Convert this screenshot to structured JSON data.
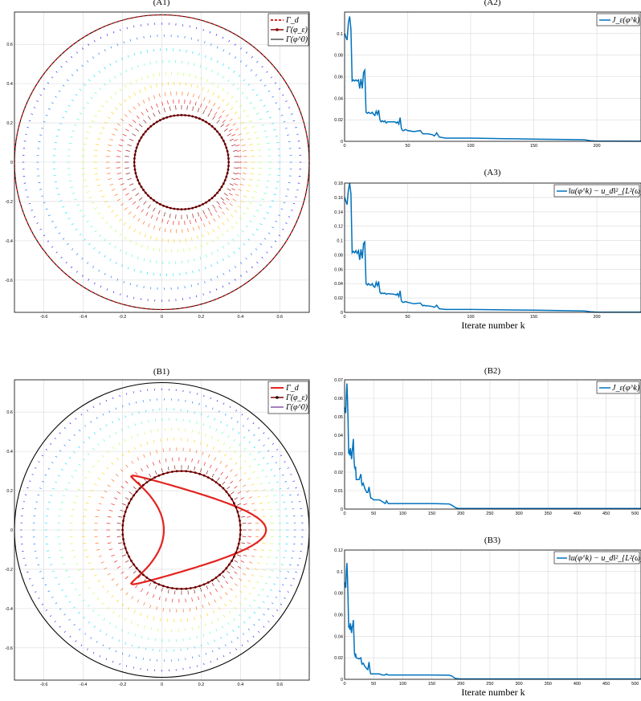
{
  "chart_data": [
    {
      "id": "A1",
      "type": "scatter",
      "title": "(A1)",
      "xlim": [
        -0.75,
        0.75
      ],
      "ylim": [
        -0.75,
        0.75
      ],
      "ticks": [
        -0.6,
        -0.4,
        -0.2,
        0,
        0.2,
        0.4,
        0.6
      ],
      "tick_labels": [
        "-0.6",
        "-0.4",
        "-0.2",
        "0",
        "0.2",
        "0.4",
        "0.6"
      ],
      "grid": true,
      "legend_position": "top-right",
      "legend": [
        "Γ_d",
        "Γ(φ_ε)",
        "Γ(φ^0)"
      ],
      "domain_circle_radius": 0.75,
      "target_shape": "circle",
      "target_radius": 0.75,
      "target_style": "dashed-red",
      "recovered_center": [
        0.1,
        0
      ],
      "recovered_radius": 0.24,
      "quiver_rings": [
        0.29,
        0.32,
        0.36,
        0.41,
        0.46,
        0.52,
        0.58,
        0.65,
        0.71
      ]
    },
    {
      "id": "A2",
      "type": "line",
      "title": "(A2)",
      "xlim": [
        0,
        235
      ],
      "ylim": [
        0,
        0.12
      ],
      "xticks": [
        0,
        50,
        100,
        150,
        200
      ],
      "xtick_labels": [
        "0",
        "50",
        "100",
        "150",
        "200"
      ],
      "yticks": [
        0,
        0.02,
        0.04,
        0.06,
        0.08,
        0.1
      ],
      "ytick_labels": [
        "0",
        "0.02",
        "0.04",
        "0.06",
        "0.08",
        "0.1"
      ],
      "grid": true,
      "legend_position": "top-right",
      "series": [
        {
          "name": "J_ε(φ^k)",
          "color": "#0072bd",
          "x": [
            0,
            2,
            3,
            4,
            5,
            6,
            7,
            8,
            9,
            10,
            11,
            12,
            13,
            14,
            15,
            16,
            17,
            18,
            19,
            20,
            21,
            22,
            23,
            24,
            25,
            26,
            27,
            28,
            29,
            30,
            31,
            32,
            33,
            34,
            35,
            40,
            41,
            42,
            43,
            44,
            45,
            46,
            47,
            48,
            50,
            55,
            60,
            62,
            63,
            64,
            66,
            70,
            71,
            72,
            73,
            75,
            80,
            100,
            150,
            190,
            195,
            200,
            235
          ],
          "y": [
            0.1,
            0.094,
            0.11,
            0.116,
            0.104,
            0.056,
            0.057,
            0.056,
            0.057,
            0.056,
            0.057,
            0.049,
            0.058,
            0.049,
            0.064,
            0.066,
            0.027,
            0.026,
            0.027,
            0.026,
            0.026,
            0.027,
            0.025,
            0.024,
            0.028,
            0.025,
            0.029,
            0.02,
            0.018,
            0.019,
            0.018,
            0.019,
            0.017,
            0.018,
            0.018,
            0.018,
            0.017,
            0.018,
            0.016,
            0.022,
            0.012,
            0.01,
            0.01,
            0.011,
            0.01,
            0.009,
            0.01,
            0.007,
            0.007,
            0.007,
            0.007,
            0.006,
            0.005,
            0.006,
            0.008,
            0.004,
            0.003,
            0.003,
            0.002,
            0.0015,
            0.0005,
            0.0002,
            0.0001
          ]
        }
      ]
    },
    {
      "id": "A3",
      "type": "line",
      "title": "(A3)",
      "xlabel": "Iterate number k",
      "xlim": [
        0,
        235
      ],
      "ylim": [
        0,
        0.18
      ],
      "xticks": [
        0,
        50,
        100,
        150,
        200
      ],
      "xtick_labels": [
        "0",
        "50",
        "100",
        "150",
        "200"
      ],
      "yticks": [
        0,
        0.02,
        0.04,
        0.06,
        0.08,
        0.1,
        0.12,
        0.14,
        0.16,
        0.18
      ],
      "ytick_labels": [
        "0",
        "0.02",
        "0.04",
        "0.06",
        "0.08",
        "0.1",
        "0.12",
        "0.14",
        "0.16",
        "0.18"
      ],
      "grid": true,
      "legend_position": "top-right",
      "series": [
        {
          "name": "‖u(φ^k) − u_d‖²_{L²(ω)}",
          "color": "#0072bd",
          "x": [
            0,
            2,
            3,
            4,
            5,
            6,
            7,
            8,
            9,
            10,
            11,
            12,
            13,
            14,
            15,
            16,
            17,
            18,
            19,
            20,
            21,
            22,
            23,
            24,
            25,
            26,
            27,
            28,
            29,
            30,
            31,
            32,
            33,
            34,
            35,
            40,
            41,
            42,
            43,
            44,
            45,
            46,
            47,
            48,
            50,
            55,
            60,
            62,
            63,
            64,
            66,
            70,
            71,
            72,
            73,
            75,
            80,
            100,
            150,
            190,
            195,
            200,
            235
          ],
          "y": [
            0.16,
            0.15,
            0.17,
            0.18,
            0.165,
            0.083,
            0.085,
            0.083,
            0.086,
            0.082,
            0.086,
            0.073,
            0.088,
            0.075,
            0.096,
            0.098,
            0.04,
            0.038,
            0.04,
            0.038,
            0.038,
            0.04,
            0.036,
            0.035,
            0.042,
            0.037,
            0.043,
            0.028,
            0.026,
            0.027,
            0.026,
            0.027,
            0.025,
            0.026,
            0.026,
            0.025,
            0.024,
            0.026,
            0.022,
            0.03,
            0.016,
            0.014,
            0.014,
            0.015,
            0.014,
            0.012,
            0.013,
            0.009,
            0.01,
            0.009,
            0.009,
            0.008,
            0.007,
            0.008,
            0.01,
            0.005,
            0.004,
            0.004,
            0.003,
            0.002,
            0.0008,
            0.0003,
            0.0002
          ]
        }
      ]
    },
    {
      "id": "B1",
      "type": "scatter",
      "title": "(B1)",
      "xlim": [
        -0.75,
        0.75
      ],
      "ylim": [
        -0.75,
        0.75
      ],
      "ticks": [
        -0.6,
        -0.4,
        -0.2,
        0,
        0.2,
        0.4,
        0.6
      ],
      "tick_labels": [
        "-0.6",
        "-0.4",
        "-0.2",
        "0",
        "0.2",
        "0.4",
        "0.6"
      ],
      "grid": true,
      "legend_position": "top-right",
      "legend": [
        "Γ_d",
        "Γ(φ_ε)",
        "Γ(φ^0)"
      ],
      "domain_circle_radius": 0.75,
      "target_shape": "kite",
      "target_style": "solid-red",
      "recovered_center": [
        0.1,
        0
      ],
      "recovered_radius": 0.3,
      "quiver_rings": [
        0.33,
        0.37,
        0.42,
        0.47,
        0.52,
        0.57,
        0.62,
        0.67,
        0.72
      ]
    },
    {
      "id": "B2",
      "type": "line",
      "title": "(B2)",
      "xlim": [
        0,
        510
      ],
      "ylim": [
        0,
        0.07
      ],
      "xticks": [
        0,
        50,
        100,
        150,
        200,
        250,
        300,
        350,
        400,
        450,
        500
      ],
      "xtick_labels": [
        "0",
        "50",
        "100",
        "150",
        "200",
        "250",
        "300",
        "350",
        "400",
        "450",
        "500"
      ],
      "yticks": [
        0,
        0.01,
        0.02,
        0.03,
        0.04,
        0.05,
        0.06,
        0.07
      ],
      "ytick_labels": [
        "0",
        "0.01",
        "0.02",
        "0.03",
        "0.04",
        "0.05",
        "0.06",
        "0.07"
      ],
      "grid": true,
      "legend_position": "top-right",
      "series": [
        {
          "name": "J_ε(φ^k)",
          "color": "#0072bd",
          "x": [
            0,
            2,
            3,
            4,
            5,
            6,
            7,
            8,
            9,
            10,
            11,
            12,
            13,
            14,
            15,
            16,
            17,
            18,
            19,
            20,
            25,
            28,
            29,
            30,
            32,
            35,
            38,
            40,
            42,
            44,
            45,
            46,
            50,
            55,
            60,
            65,
            70,
            72,
            75,
            100,
            150,
            180,
            185,
            190,
            195,
            200,
            510
          ],
          "y": [
            0.055,
            0.052,
            0.062,
            0.068,
            0.06,
            0.048,
            0.03,
            0.032,
            0.029,
            0.033,
            0.03,
            0.027,
            0.031,
            0.034,
            0.038,
            0.028,
            0.023,
            0.022,
            0.023,
            0.016,
            0.016,
            0.019,
            0.015,
            0.013,
            0.014,
            0.011,
            0.009,
            0.009,
            0.012,
            0.008,
            0.006,
            0.006,
            0.005,
            0.005,
            0.005,
            0.004,
            0.003,
            0.0045,
            0.003,
            0.003,
            0.003,
            0.0028,
            0.002,
            0.0009,
            0.0004,
            0.0003,
            0.0003
          ]
        }
      ]
    },
    {
      "id": "B3",
      "type": "line",
      "title": "(B3)",
      "xlabel": "Iterate number k",
      "xlim": [
        0,
        510
      ],
      "ylim": [
        0,
        0.12
      ],
      "xticks": [
        0,
        50,
        100,
        150,
        200,
        250,
        300,
        350,
        400,
        450,
        500
      ],
      "xtick_labels": [
        "0",
        "50",
        "100",
        "150",
        "200",
        "250",
        "300",
        "350",
        "400",
        "450",
        "500"
      ],
      "yticks": [
        0,
        0.02,
        0.04,
        0.06,
        0.08,
        0.1,
        0.12
      ],
      "ytick_labels": [
        "0",
        "0.02",
        "0.04",
        "0.06",
        "0.08",
        "0.1",
        "0.12"
      ],
      "grid": true,
      "legend_position": "top-right",
      "series": [
        {
          "name": "‖u(φ^k) − u_d‖²_{L²(ω)}",
          "color": "#0072bd",
          "x": [
            0,
            2,
            3,
            4,
            5,
            6,
            7,
            8,
            9,
            10,
            11,
            12,
            13,
            14,
            15,
            16,
            17,
            18,
            19,
            20,
            25,
            28,
            29,
            30,
            32,
            35,
            38,
            40,
            42,
            44,
            45,
            46,
            50,
            55,
            60,
            65,
            70,
            72,
            75,
            100,
            150,
            180,
            185,
            190,
            195,
            200,
            510
          ],
          "y": [
            0.09,
            0.085,
            0.1,
            0.108,
            0.095,
            0.075,
            0.048,
            0.05,
            0.046,
            0.052,
            0.047,
            0.043,
            0.049,
            0.05,
            0.055,
            0.04,
            0.024,
            0.022,
            0.024,
            0.02,
            0.019,
            0.02,
            0.016,
            0.014,
            0.015,
            0.012,
            0.01,
            0.009,
            0.016,
            0.007,
            0.005,
            0.005,
            0.005,
            0.005,
            0.005,
            0.004,
            0.004,
            0.005,
            0.004,
            0.004,
            0.004,
            0.0038,
            0.003,
            0.001,
            0.0005,
            0.0004,
            0.0004
          ]
        }
      ]
    }
  ]
}
